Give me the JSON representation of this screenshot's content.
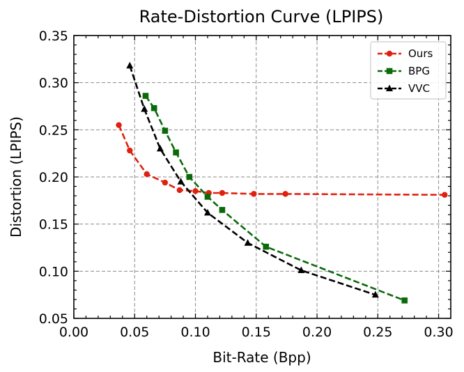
{
  "chart_data": {
    "type": "line",
    "title": "Rate-Distortion Curve (LPIPS)",
    "xlabel": "Bit-Rate (Bpp)",
    "ylabel": "Distortion (LPIPS)",
    "xlim": [
      0.0,
      0.31
    ],
    "ylim": [
      0.05,
      0.35
    ],
    "xticks": [
      0.0,
      0.05,
      0.1,
      0.15,
      0.2,
      0.25,
      0.3
    ],
    "xtick_labels": [
      "0.00",
      "0.05",
      "0.10",
      "0.15",
      "0.20",
      "0.25",
      "0.30"
    ],
    "yticks": [
      0.05,
      0.1,
      0.15,
      0.2,
      0.25,
      0.3,
      0.35
    ],
    "ytick_labels": [
      "0.05",
      "0.10",
      "0.15",
      "0.20",
      "0.25",
      "0.30",
      "0.35"
    ],
    "grid": true,
    "legend_position": "top-right",
    "series": [
      {
        "name": "Ours",
        "color": "#e0200f",
        "marker": "circle",
        "x": [
          0.037,
          0.046,
          0.06,
          0.075,
          0.087,
          0.1,
          0.111,
          0.122,
          0.148,
          0.174,
          0.305
        ],
        "y": [
          0.255,
          0.228,
          0.203,
          0.194,
          0.186,
          0.185,
          0.183,
          0.183,
          0.182,
          0.182,
          0.181
        ]
      },
      {
        "name": "BPG",
        "color": "#0a6a0a",
        "marker": "square",
        "x": [
          0.059,
          0.066,
          0.075,
          0.084,
          0.095,
          0.11,
          0.122,
          0.158,
          0.272
        ],
        "y": [
          0.286,
          0.273,
          0.249,
          0.226,
          0.2,
          0.179,
          0.165,
          0.126,
          0.069
        ]
      },
      {
        "name": "VVC",
        "color": "#000000",
        "marker": "triangle",
        "x": [
          0.046,
          0.058,
          0.071,
          0.088,
          0.11,
          0.143,
          0.187,
          0.248
        ],
        "y": [
          0.318,
          0.272,
          0.23,
          0.195,
          0.162,
          0.13,
          0.101,
          0.075
        ]
      }
    ]
  }
}
